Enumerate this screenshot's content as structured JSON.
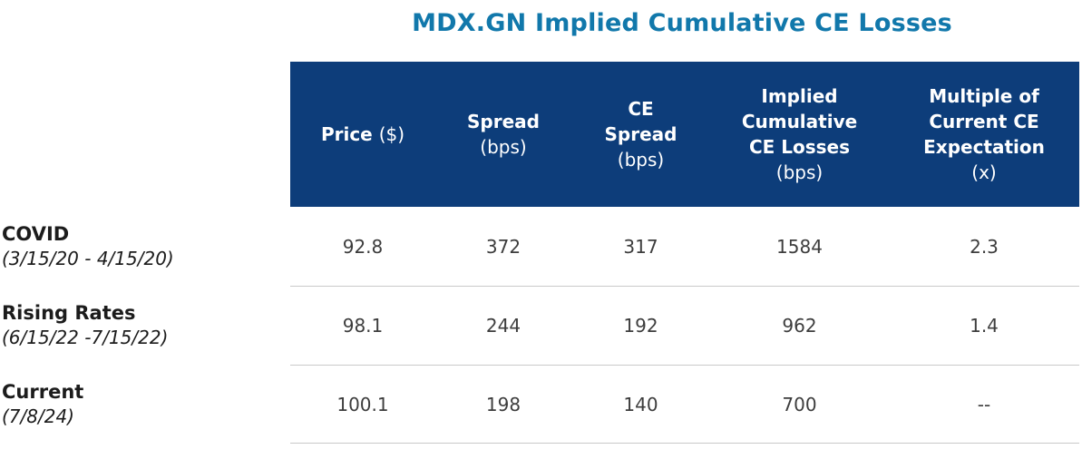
{
  "title": "MDX.GN Implied Cumulative CE Losses",
  "colors": {
    "title_text": "#1178ab",
    "header_bg": "#0d3d7a",
    "header_text": "#ffffff",
    "value_text": "#3d3d3d",
    "row_divider": "#c9c9c9"
  },
  "chart_data": {
    "type": "table",
    "title": "MDX.GN Implied Cumulative CE Losses",
    "columns": [
      {
        "label": "Price",
        "unit": "($)"
      },
      {
        "label": "Spread",
        "unit": "(bps)"
      },
      {
        "label": "CE Spread",
        "unit": "(bps)"
      },
      {
        "label": "Implied Cumulative CE Losses",
        "unit": "(bps)"
      },
      {
        "label": "Multiple of Current CE Expectation",
        "unit": "(x)"
      }
    ],
    "rows": [
      {
        "label": "COVID",
        "period": "(3/15/20 - 4/15/20)",
        "values": [
          "92.8",
          "372",
          "317",
          "1584",
          "2.3"
        ]
      },
      {
        "label": "Rising Rates",
        "period": "(6/15/22 -7/15/22)",
        "values": [
          "98.1",
          "244",
          "192",
          "962",
          "1.4"
        ]
      },
      {
        "label": "Current",
        "period": "(7/8/24)",
        "values": [
          "100.1",
          "198",
          "140",
          "700",
          "--"
        ]
      }
    ]
  }
}
